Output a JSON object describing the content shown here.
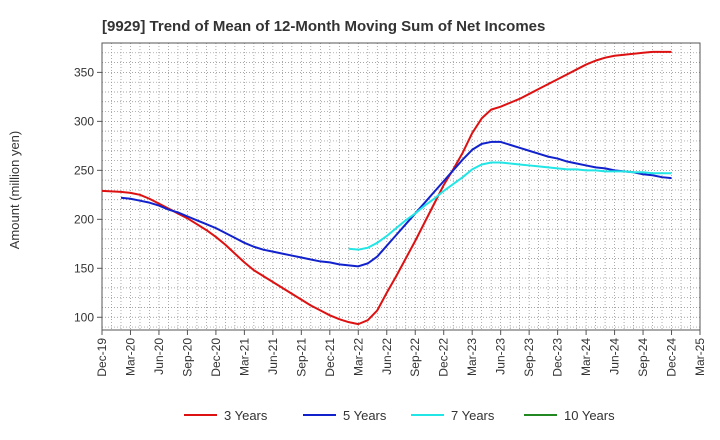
{
  "chart_data": {
    "type": "line",
    "title": "[9929]  Trend of Mean of 12-Month Moving Sum of Net Incomes",
    "xlabel": "",
    "ylabel": "Amount (million yen)",
    "ylim": [
      87,
      380
    ],
    "yticks": [
      100,
      150,
      200,
      250,
      300,
      350
    ],
    "xlim": [
      "2019-12",
      "2025-03"
    ],
    "x_tick_labels": [
      "Dec-19",
      "Mar-20",
      "Jun-20",
      "Sep-20",
      "Dec-20",
      "Mar-21",
      "Jun-21",
      "Sep-21",
      "Dec-21",
      "Mar-22",
      "Jun-22",
      "Sep-22",
      "Dec-22",
      "Mar-23",
      "Jun-23",
      "Sep-23",
      "Dec-23",
      "Mar-24",
      "Jun-24",
      "Sep-24",
      "Dec-24",
      "Mar-25"
    ],
    "grid": true,
    "legend_position": "bottom",
    "series": [
      {
        "name": "3 Years",
        "color": "#dd1111",
        "points": [
          [
            "2019-12",
            229
          ],
          [
            "2020-01",
            228.5
          ],
          [
            "2020-02",
            228
          ],
          [
            "2020-03",
            227
          ],
          [
            "2020-04",
            225
          ],
          [
            "2020-05",
            221
          ],
          [
            "2020-06",
            216
          ],
          [
            "2020-07",
            211
          ],
          [
            "2020-08",
            206
          ],
          [
            "2020-09",
            201
          ],
          [
            "2020-10",
            195
          ],
          [
            "2020-11",
            189
          ],
          [
            "2020-12",
            182
          ],
          [
            "2021-01",
            174
          ],
          [
            "2021-02",
            165
          ],
          [
            "2021-03",
            156
          ],
          [
            "2021-04",
            148
          ],
          [
            "2021-05",
            142
          ],
          [
            "2021-06",
            136
          ],
          [
            "2021-07",
            130
          ],
          [
            "2021-08",
            124
          ],
          [
            "2021-09",
            118
          ],
          [
            "2021-10",
            112
          ],
          [
            "2021-11",
            107
          ],
          [
            "2021-12",
            102
          ],
          [
            "2022-01",
            98
          ],
          [
            "2022-02",
            95
          ],
          [
            "2022-03",
            93
          ],
          [
            "2022-04",
            97
          ],
          [
            "2022-05",
            107
          ],
          [
            "2022-06",
            125
          ],
          [
            "2022-07",
            142
          ],
          [
            "2022-08",
            160
          ],
          [
            "2022-09",
            178
          ],
          [
            "2022-10",
            197
          ],
          [
            "2022-11",
            216
          ],
          [
            "2022-12",
            235
          ],
          [
            "2023-01",
            251
          ],
          [
            "2023-02",
            268
          ],
          [
            "2023-03",
            288
          ],
          [
            "2023-04",
            303
          ],
          [
            "2023-05",
            312
          ],
          [
            "2023-06",
            315
          ],
          [
            "2023-07",
            319
          ],
          [
            "2023-08",
            323
          ],
          [
            "2023-09",
            328
          ],
          [
            "2023-10",
            333
          ],
          [
            "2023-11",
            338
          ],
          [
            "2023-12",
            343
          ],
          [
            "2024-01",
            348
          ],
          [
            "2024-02",
            353
          ],
          [
            "2024-03",
            358
          ],
          [
            "2024-04",
            362
          ],
          [
            "2024-05",
            365
          ],
          [
            "2024-06",
            367
          ],
          [
            "2024-07",
            368
          ],
          [
            "2024-08",
            369
          ],
          [
            "2024-09",
            370
          ],
          [
            "2024-10",
            371
          ],
          [
            "2024-11",
            371
          ],
          [
            "2024-12",
            371
          ]
        ]
      },
      {
        "name": "5 Years",
        "color": "#1122cc",
        "points": [
          [
            "2020-02",
            222
          ],
          [
            "2020-03",
            221
          ],
          [
            "2020-04",
            219
          ],
          [
            "2020-05",
            217
          ],
          [
            "2020-06",
            214
          ],
          [
            "2020-07",
            210
          ],
          [
            "2020-08",
            207
          ],
          [
            "2020-09",
            203
          ],
          [
            "2020-10",
            199
          ],
          [
            "2020-11",
            195
          ],
          [
            "2020-12",
            191
          ],
          [
            "2021-01",
            186
          ],
          [
            "2021-02",
            181
          ],
          [
            "2021-03",
            176
          ],
          [
            "2021-04",
            172
          ],
          [
            "2021-05",
            169
          ],
          [
            "2021-06",
            167
          ],
          [
            "2021-07",
            165
          ],
          [
            "2021-08",
            163
          ],
          [
            "2021-09",
            161
          ],
          [
            "2021-10",
            159
          ],
          [
            "2021-11",
            157
          ],
          [
            "2021-12",
            156
          ],
          [
            "2022-01",
            154
          ],
          [
            "2022-02",
            153
          ],
          [
            "2022-03",
            152
          ],
          [
            "2022-04",
            155
          ],
          [
            "2022-05",
            162
          ],
          [
            "2022-06",
            173
          ],
          [
            "2022-07",
            184
          ],
          [
            "2022-08",
            195
          ],
          [
            "2022-09",
            206
          ],
          [
            "2022-10",
            217
          ],
          [
            "2022-11",
            228
          ],
          [
            "2022-12",
            239
          ],
          [
            "2023-01",
            250
          ],
          [
            "2023-02",
            261
          ],
          [
            "2023-03",
            271
          ],
          [
            "2023-04",
            277
          ],
          [
            "2023-05",
            279
          ],
          [
            "2023-06",
            279
          ],
          [
            "2023-07",
            276
          ],
          [
            "2023-08",
            273
          ],
          [
            "2023-09",
            270
          ],
          [
            "2023-10",
            267
          ],
          [
            "2023-11",
            264
          ],
          [
            "2023-12",
            262
          ],
          [
            "2024-01",
            259
          ],
          [
            "2024-02",
            257
          ],
          [
            "2024-03",
            255
          ],
          [
            "2024-04",
            253
          ],
          [
            "2024-05",
            252
          ],
          [
            "2024-06",
            250
          ],
          [
            "2024-07",
            249
          ],
          [
            "2024-08",
            248
          ],
          [
            "2024-09",
            246
          ],
          [
            "2024-10",
            245
          ],
          [
            "2024-11",
            243
          ],
          [
            "2024-12",
            242
          ]
        ]
      },
      {
        "name": "7 Years",
        "color": "#22e5e5",
        "points": [
          [
            "2022-02",
            170
          ],
          [
            "2022-03",
            169
          ],
          [
            "2022-04",
            171
          ],
          [
            "2022-05",
            176
          ],
          [
            "2022-06",
            183
          ],
          [
            "2022-07",
            191
          ],
          [
            "2022-08",
            199
          ],
          [
            "2022-09",
            206
          ],
          [
            "2022-10",
            214
          ],
          [
            "2022-11",
            221
          ],
          [
            "2022-12",
            229
          ],
          [
            "2023-01",
            236
          ],
          [
            "2023-02",
            243
          ],
          [
            "2023-03",
            251
          ],
          [
            "2023-04",
            256
          ],
          [
            "2023-05",
            258
          ],
          [
            "2023-06",
            258
          ],
          [
            "2023-07",
            257
          ],
          [
            "2023-08",
            256
          ],
          [
            "2023-09",
            255
          ],
          [
            "2023-10",
            254
          ],
          [
            "2023-11",
            253
          ],
          [
            "2023-12",
            252
          ],
          [
            "2024-01",
            251
          ],
          [
            "2024-02",
            251
          ],
          [
            "2024-03",
            250
          ],
          [
            "2024-04",
            250
          ],
          [
            "2024-05",
            249
          ],
          [
            "2024-06",
            249
          ],
          [
            "2024-07",
            249
          ],
          [
            "2024-08",
            248
          ],
          [
            "2024-09",
            248
          ],
          [
            "2024-10",
            247
          ],
          [
            "2024-11",
            247
          ],
          [
            "2024-12",
            247
          ]
        ]
      },
      {
        "name": "10 Years",
        "color": "#228822",
        "points": []
      }
    ]
  }
}
